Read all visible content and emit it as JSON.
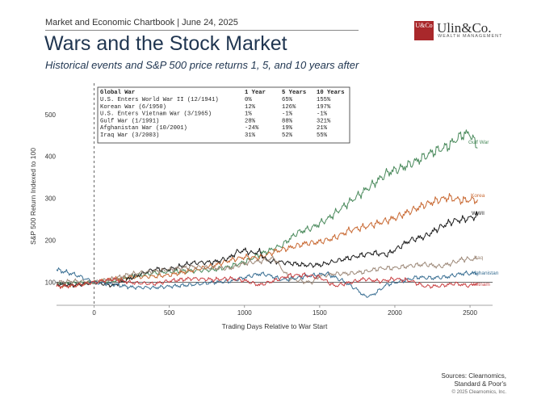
{
  "header": {
    "topline": "Market and Economic Chartbook | June 24, 2025",
    "title": "Wars and the Stock Market",
    "subtitle": "Historical events and S&P 500 price returns 1, 5, and 10 years after"
  },
  "brand": {
    "logo_mark": "U&Co",
    "name": "Ulin&Co.",
    "tagline": "WEALTH MANAGEMENT"
  },
  "sources": {
    "line1": "Sources: Clearnomics,",
    "line2": "Standard & Poor's",
    "copyright": "© 2025 Clearnomics, Inc."
  },
  "table": {
    "headers": [
      "Global War",
      "1 Year",
      "5 Years",
      "10 Years"
    ],
    "rows": [
      [
        "U.S. Enters World War II (12/1941)",
        "0%",
        "65%",
        "155%"
      ],
      [
        "Korean War (6/1950)",
        "12%",
        "126%",
        "197%"
      ],
      [
        "U.S. Enters Vietnam War (3/1965)",
        "1%",
        "-1%",
        "-1%"
      ],
      [
        "Gulf War (1/1991)",
        "28%",
        "88%",
        "321%"
      ],
      [
        "Afghanistan War (10/2001)",
        "-24%",
        "19%",
        "21%"
      ],
      [
        "Iraq War (3/2003)",
        "31%",
        "52%",
        "55%"
      ]
    ]
  },
  "chart_data": {
    "type": "line",
    "xlabel": "Trading Days Relative to War Start",
    "ylabel": "S&P 500 Return Indexed to 100",
    "xlim": [
      -250,
      2650
    ],
    "ylim": [
      45,
      565
    ],
    "xticks": [
      0,
      500,
      1000,
      1500,
      2000,
      2500
    ],
    "yticks": [
      100,
      200,
      300,
      400,
      500
    ],
    "reference_line": 100,
    "vertical_marker_x": 0,
    "series": [
      {
        "name": "Gulf War",
        "color": "#4a8a5c",
        "points": [
          [
            -250,
            95
          ],
          [
            -125,
            98
          ],
          [
            0,
            100
          ],
          [
            125,
            103
          ],
          [
            250,
            113
          ],
          [
            400,
            122
          ],
          [
            500,
            125
          ],
          [
            650,
            127
          ],
          [
            800,
            130
          ],
          [
            900,
            137
          ],
          [
            1000,
            148
          ],
          [
            1100,
            166
          ],
          [
            1250,
            188
          ],
          [
            1350,
            218
          ],
          [
            1450,
            230
          ],
          [
            1550,
            250
          ],
          [
            1650,
            278
          ],
          [
            1750,
            305
          ],
          [
            1850,
            332
          ],
          [
            1950,
            361
          ],
          [
            2050,
            373
          ],
          [
            2150,
            390
          ],
          [
            2250,
            410
          ],
          [
            2350,
            424
          ],
          [
            2400,
            438
          ],
          [
            2450,
            452
          ],
          [
            2500,
            455
          ],
          [
            2550,
            420
          ]
        ]
      },
      {
        "name": "Korea",
        "color": "#c96a34",
        "points": [
          [
            -250,
            90
          ],
          [
            -125,
            92
          ],
          [
            0,
            100
          ],
          [
            125,
            108
          ],
          [
            250,
            112
          ],
          [
            400,
            114
          ],
          [
            500,
            117
          ],
          [
            650,
            128
          ],
          [
            800,
            140
          ],
          [
            900,
            152
          ],
          [
            1000,
            160
          ],
          [
            1100,
            158
          ],
          [
            1200,
            173
          ],
          [
            1300,
            182
          ],
          [
            1400,
            192
          ],
          [
            1500,
            196
          ],
          [
            1600,
            206
          ],
          [
            1700,
            224
          ],
          [
            1800,
            232
          ],
          [
            1900,
            242
          ],
          [
            2000,
            253
          ],
          [
            2100,
            269
          ],
          [
            2200,
            285
          ],
          [
            2300,
            297
          ],
          [
            2350,
            302
          ],
          [
            2450,
            295
          ],
          [
            2550,
            297
          ]
        ]
      },
      {
        "name": "WWII",
        "color": "#1c1c1c",
        "points": [
          [
            -250,
            96
          ],
          [
            -125,
            93
          ],
          [
            0,
            100
          ],
          [
            125,
            92
          ],
          [
            250,
            111
          ],
          [
            400,
            131
          ],
          [
            500,
            130
          ],
          [
            650,
            146
          ],
          [
            800,
            148
          ],
          [
            900,
            158
          ],
          [
            950,
            172
          ],
          [
            1000,
            176
          ],
          [
            1050,
            169
          ],
          [
            1100,
            173
          ],
          [
            1150,
            151
          ],
          [
            1250,
            148
          ],
          [
            1400,
            141
          ],
          [
            1500,
            141
          ],
          [
            1650,
            154
          ],
          [
            1750,
            162
          ],
          [
            1850,
            170
          ],
          [
            1950,
            166
          ],
          [
            2000,
            177
          ],
          [
            2100,
            200
          ],
          [
            2200,
            209
          ],
          [
            2300,
            231
          ],
          [
            2350,
            240
          ],
          [
            2400,
            247
          ],
          [
            2450,
            249
          ],
          [
            2550,
            258
          ]
        ]
      },
      {
        "name": "Iraq",
        "color": "#9e8a7a",
        "points": [
          [
            -250,
            100
          ],
          [
            -125,
            103
          ],
          [
            0,
            100
          ],
          [
            125,
            108
          ],
          [
            250,
            120
          ],
          [
            400,
            126
          ],
          [
            500,
            130
          ],
          [
            650,
            137
          ],
          [
            800,
            134
          ],
          [
            900,
            133
          ],
          [
            1000,
            145
          ],
          [
            1100,
            150
          ],
          [
            1200,
            157
          ],
          [
            1250,
            131
          ],
          [
            1300,
            109
          ],
          [
            1400,
            101
          ],
          [
            1450,
            100
          ],
          [
            1500,
            115
          ],
          [
            1600,
            120
          ],
          [
            1700,
            121
          ],
          [
            1800,
            125
          ],
          [
            1900,
            133
          ],
          [
            2000,
            134
          ],
          [
            2100,
            139
          ],
          [
            2200,
            143
          ],
          [
            2300,
            137
          ],
          [
            2400,
            148
          ],
          [
            2450,
            155
          ],
          [
            2550,
            155
          ]
        ]
      },
      {
        "name": "Afghanistan",
        "color": "#3a6f93",
        "points": [
          [
            -250,
            130
          ],
          [
            -125,
            118
          ],
          [
            0,
            100
          ],
          [
            125,
            95
          ],
          [
            250,
            88
          ],
          [
            400,
            87
          ],
          [
            500,
            90
          ],
          [
            650,
            94
          ],
          [
            800,
            100
          ],
          [
            900,
            102
          ],
          [
            1000,
            111
          ],
          [
            1050,
            116
          ],
          [
            1100,
            120
          ],
          [
            1150,
            118
          ],
          [
            1250,
            106
          ],
          [
            1350,
            110
          ],
          [
            1400,
            114
          ],
          [
            1500,
            118
          ],
          [
            1550,
            120
          ],
          [
            1650,
            104
          ],
          [
            1750,
            82
          ],
          [
            1800,
            66
          ],
          [
            1850,
            69
          ],
          [
            1900,
            82
          ],
          [
            1950,
            95
          ],
          [
            2050,
            103
          ],
          [
            2150,
            112
          ],
          [
            2250,
            110
          ],
          [
            2350,
            113
          ],
          [
            2450,
            121
          ],
          [
            2550,
            121
          ]
        ]
      },
      {
        "name": "Vietnam",
        "color": "#c94244",
        "points": [
          [
            -250,
            90
          ],
          [
            -125,
            92
          ],
          [
            0,
            100
          ],
          [
            125,
            107
          ],
          [
            250,
            99
          ],
          [
            400,
            96
          ],
          [
            500,
            103
          ],
          [
            650,
            109
          ],
          [
            800,
            106
          ],
          [
            900,
            109
          ],
          [
            1000,
            104
          ],
          [
            1100,
            93
          ],
          [
            1200,
            104
          ],
          [
            1300,
            116
          ],
          [
            1400,
            117
          ],
          [
            1500,
            112
          ],
          [
            1600,
            91
          ],
          [
            1700,
            99
          ],
          [
            1800,
            108
          ],
          [
            1900,
            102
          ],
          [
            2000,
            108
          ],
          [
            2100,
            104
          ],
          [
            2200,
            90
          ],
          [
            2300,
            91
          ],
          [
            2400,
            97
          ],
          [
            2500,
            91
          ],
          [
            2550,
            99
          ]
        ]
      }
    ]
  }
}
